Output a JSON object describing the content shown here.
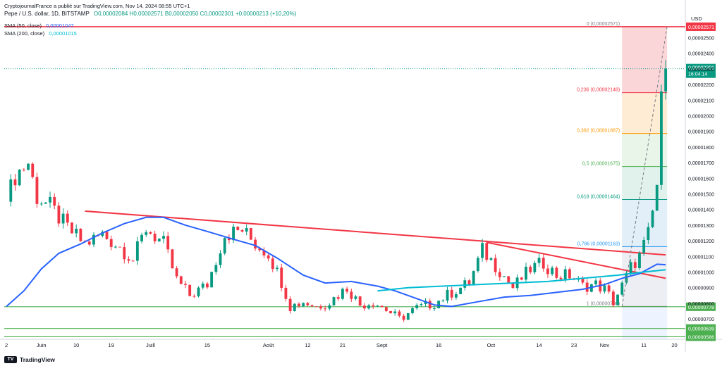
{
  "header": {
    "published": "CryptojournalFrance a publié sur TradingView.com, Nov 14, 2024 08:55 UTC+1",
    "symbol": "Pepe / U.S. dollar, 1D, BITSTAMP",
    "ohlc": "O0,00002084  H0,00002571  B0,00002050  C0,00002301  +0,00000213 (+10,20%)",
    "sma50_label": "SMA (50, close)",
    "sma50_value": "0,00001047",
    "sma200_label": "SMA (200, close)",
    "sma200_value": "0,00001015"
  },
  "footer": {
    "brand": "TradingView",
    "logo": "TV"
  },
  "colors": {
    "up": "#089981",
    "down": "#f23645",
    "sma50": "#2962ff",
    "sma200": "#00bcd4",
    "resistance": "#f23645",
    "support": "#4caf50",
    "last_price": "#089981"
  },
  "chart_data": {
    "type": "candlestick",
    "currency": "USD",
    "ylim": [
      5.7e-06,
      2.66e-05
    ],
    "x_ticks": [
      "2",
      "Juin",
      "10",
      "19",
      "Juill",
      "15",
      "Août",
      "12",
      "21",
      "Sept",
      "16",
      "Oct",
      "14",
      "23",
      "Nov",
      "11",
      "20"
    ],
    "x_tick_index": [
      0,
      8,
      16,
      24,
      33,
      46,
      60,
      69,
      77,
      86,
      99,
      111,
      122,
      130,
      137,
      146,
      153
    ],
    "price_ticks": [
      "0,00002500",
      "0,00002400",
      "0,00002300",
      "0,00002200",
      "0,00002100",
      "0,00002000",
      "0,00001900",
      "0,00001800",
      "0,00001700",
      "0,00001600",
      "0,00001500",
      "0,00001400",
      "0,00001300",
      "0,00001200",
      "0,00001100",
      "0,00001000",
      "0,00000900",
      "0,00000800",
      "0,00000700"
    ],
    "price_tick_values": [
      2.5e-05,
      2.4e-05,
      2.3e-05,
      2.2e-05,
      2.1e-05,
      2e-05,
      1.9e-05,
      1.8e-05,
      1.7e-05,
      1.6e-05,
      1.5e-05,
      1.4e-05,
      1.3e-05,
      1.2e-05,
      1.1e-05,
      1e-05,
      9e-06,
      8e-06,
      7e-06
    ],
    "last_price": {
      "label": "0,00002301",
      "timer": "16:04:14",
      "value": 2.301e-05
    },
    "horizontal_levels": [
      {
        "label": "0,00002571",
        "value": 2.57e-05,
        "color": "#f23645"
      },
      {
        "label": "0,00000778",
        "value": 7.78e-06,
        "color": "#4caf50"
      },
      {
        "label": "0,00000639",
        "value": 6.39e-06,
        "color": "#4caf50"
      },
      {
        "label": "0,00000586",
        "value": 5.86e-06,
        "color": "#4caf50"
      }
    ],
    "fibonacci": [
      {
        "label": "0 (0,00002571)",
        "value": 2.571e-05,
        "color": "#787b86"
      },
      {
        "label": "0,236 (0,00002148)",
        "value": 2.148e-05,
        "color": "#f23645"
      },
      {
        "label": "0,382 (0,00001887)",
        "value": 1.887e-05,
        "color": "#ff9800"
      },
      {
        "label": "0,5 (0,00001675)",
        "value": 1.675e-05,
        "color": "#4caf50"
      },
      {
        "label": "0,618 (0,00001464)",
        "value": 1.464e-05,
        "color": "#089981"
      },
      {
        "label": "0,786 (0,00001163)",
        "value": 1.163e-05,
        "color": "#2196f3"
      },
      {
        "label": "1 (0,00000780)",
        "value": 7.8e-06,
        "color": "#787b86"
      }
    ],
    "candle_path": [
      [
        0,
        1.45e-05
      ],
      [
        2,
        1.62e-05
      ],
      [
        5,
        1.7e-05
      ],
      [
        7,
        1.48e-05
      ],
      [
        10,
        1.42e-05
      ],
      [
        14,
        1.28e-05
      ],
      [
        18,
        1.18e-05
      ],
      [
        22,
        1.24e-05
      ],
      [
        26,
        1.16e-05
      ],
      [
        29,
        1.08e-05
      ],
      [
        32,
        1.28e-05
      ],
      [
        36,
        1.18e-05
      ],
      [
        39,
        9.5e-06
      ],
      [
        42,
        8.5e-06
      ],
      [
        46,
        9.2e-06
      ],
      [
        50,
        1.24e-05
      ],
      [
        54,
        1.27e-05
      ],
      [
        57,
        1.18e-05
      ],
      [
        60,
        1.12e-05
      ],
      [
        63,
        9.4e-06
      ],
      [
        65,
        7.8e-06
      ],
      [
        68,
        8.1e-06
      ],
      [
        71,
        7.8e-06
      ],
      [
        74,
        8.1e-06
      ],
      [
        78,
        9e-06
      ],
      [
        81,
        7.9e-06
      ],
      [
        84,
        8.1e-06
      ],
      [
        87,
        7.6e-06
      ],
      [
        90,
        7e-06
      ],
      [
        94,
        7.7e-06
      ],
      [
        98,
        8e-06
      ],
      [
        102,
        8.7e-06
      ],
      [
        106,
        9.3e-06
      ],
      [
        109,
        1.14e-05
      ],
      [
        113,
        1.01e-05
      ],
      [
        116,
        9e-06
      ],
      [
        120,
        1.02e-05
      ],
      [
        123,
        1.06e-05
      ],
      [
        126,
        9.8e-06
      ],
      [
        129,
        9.8e-06
      ],
      [
        132,
        9.1e-06
      ],
      [
        135,
        9.2e-06
      ],
      [
        137,
        8.9e-06
      ],
      [
        139,
        8.1e-06
      ],
      [
        141,
        9.1e-06
      ],
      [
        143,
        1.03e-05
      ],
      [
        145,
        1.1e-05
      ],
      [
        147,
        1.24e-05
      ],
      [
        148,
        1.38e-05
      ],
      [
        149,
        1.56e-05
      ],
      [
        150,
        2.08e-05
      ],
      [
        151,
        2.3e-05
      ]
    ],
    "sma50": [
      [
        0,
        7.8e-06
      ],
      [
        4,
        8.8e-06
      ],
      [
        8,
        1.02e-05
      ],
      [
        12,
        1.12e-05
      ],
      [
        17,
        1.18e-05
      ],
      [
        22,
        1.25e-05
      ],
      [
        27,
        1.31e-05
      ],
      [
        32,
        1.35e-05
      ],
      [
        36,
        1.35e-05
      ],
      [
        41,
        1.3e-05
      ],
      [
        46,
        1.26e-05
      ],
      [
        52,
        1.21e-05
      ],
      [
        57,
        1.17e-05
      ],
      [
        62,
        1.09e-05
      ],
      [
        68,
        9.8e-06
      ],
      [
        73,
        9.3e-06
      ],
      [
        79,
        9.4e-06
      ],
      [
        85,
        9.1e-06
      ],
      [
        89,
        8.8e-06
      ],
      [
        94,
        8.3e-06
      ],
      [
        98,
        7.9e-06
      ],
      [
        102,
        7.8e-06
      ],
      [
        108,
        8.1e-06
      ],
      [
        114,
        8.4e-06
      ],
      [
        120,
        8.5e-06
      ],
      [
        126,
        8.7e-06
      ],
      [
        132,
        8.9e-06
      ],
      [
        137,
        9.2e-06
      ],
      [
        141,
        9.6e-06
      ],
      [
        145,
        9.9e-06
      ],
      [
        149,
        1.05e-05
      ],
      [
        151,
        1.047e-05
      ]
    ],
    "sma200": [
      [
        85,
        8.8e-06
      ],
      [
        92,
        9e-06
      ],
      [
        100,
        9.1e-06
      ],
      [
        108,
        9.2e-06
      ],
      [
        116,
        9.3e-06
      ],
      [
        124,
        9.4e-06
      ],
      [
        132,
        9.6e-06
      ],
      [
        140,
        9.8e-06
      ],
      [
        146,
        1e-05
      ],
      [
        151,
        1.015e-05
      ]
    ],
    "resistance_line": {
      "from": [
        18,
        1.39e-05
      ],
      "to": [
        151,
        1.11e-05
      ]
    },
    "resistance_line2": {
      "from": [
        110,
        1.19e-05
      ],
      "to": [
        151,
        9.6e-06
      ]
    }
  }
}
